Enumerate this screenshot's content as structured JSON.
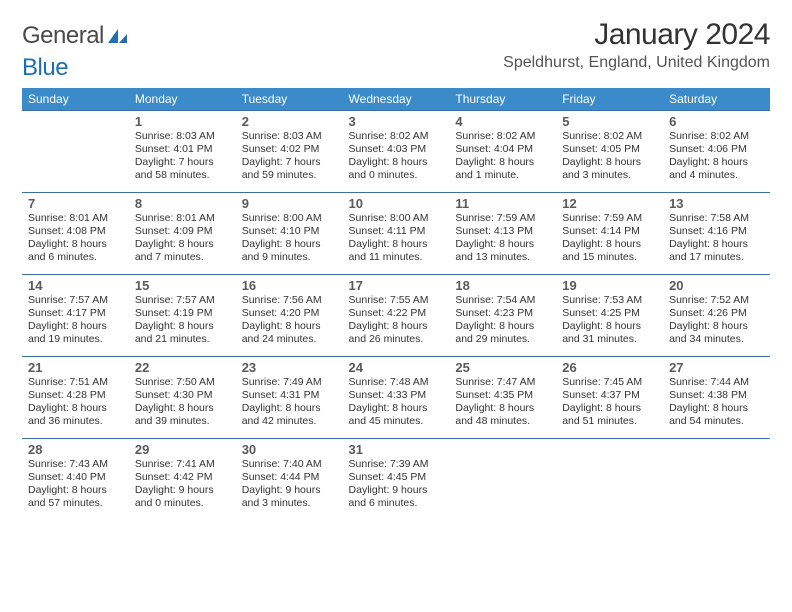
{
  "logo": {
    "word1": "General",
    "word2": "Blue"
  },
  "title": "January 2024",
  "location": "Speldhurst, England, United Kingdom",
  "colors": {
    "header_bg": "#3b8bca",
    "header_fg": "#ffffff",
    "rule": "#3b6fa0",
    "logo_gray": "#4a4a4a",
    "logo_blue": "#1f6fb2"
  },
  "day_names": [
    "Sunday",
    "Monday",
    "Tuesday",
    "Wednesday",
    "Thursday",
    "Friday",
    "Saturday"
  ],
  "start_offset": 1,
  "days_in_month": 31,
  "days": [
    {
      "n": 1,
      "sunrise": "8:03 AM",
      "sunset": "4:01 PM",
      "dl": "7 hours and 58 minutes."
    },
    {
      "n": 2,
      "sunrise": "8:03 AM",
      "sunset": "4:02 PM",
      "dl": "7 hours and 59 minutes."
    },
    {
      "n": 3,
      "sunrise": "8:02 AM",
      "sunset": "4:03 PM",
      "dl": "8 hours and 0 minutes."
    },
    {
      "n": 4,
      "sunrise": "8:02 AM",
      "sunset": "4:04 PM",
      "dl": "8 hours and 1 minute."
    },
    {
      "n": 5,
      "sunrise": "8:02 AM",
      "sunset": "4:05 PM",
      "dl": "8 hours and 3 minutes."
    },
    {
      "n": 6,
      "sunrise": "8:02 AM",
      "sunset": "4:06 PM",
      "dl": "8 hours and 4 minutes."
    },
    {
      "n": 7,
      "sunrise": "8:01 AM",
      "sunset": "4:08 PM",
      "dl": "8 hours and 6 minutes."
    },
    {
      "n": 8,
      "sunrise": "8:01 AM",
      "sunset": "4:09 PM",
      "dl": "8 hours and 7 minutes."
    },
    {
      "n": 9,
      "sunrise": "8:00 AM",
      "sunset": "4:10 PM",
      "dl": "8 hours and 9 minutes."
    },
    {
      "n": 10,
      "sunrise": "8:00 AM",
      "sunset": "4:11 PM",
      "dl": "8 hours and 11 minutes."
    },
    {
      "n": 11,
      "sunrise": "7:59 AM",
      "sunset": "4:13 PM",
      "dl": "8 hours and 13 minutes."
    },
    {
      "n": 12,
      "sunrise": "7:59 AM",
      "sunset": "4:14 PM",
      "dl": "8 hours and 15 minutes."
    },
    {
      "n": 13,
      "sunrise": "7:58 AM",
      "sunset": "4:16 PM",
      "dl": "8 hours and 17 minutes."
    },
    {
      "n": 14,
      "sunrise": "7:57 AM",
      "sunset": "4:17 PM",
      "dl": "8 hours and 19 minutes."
    },
    {
      "n": 15,
      "sunrise": "7:57 AM",
      "sunset": "4:19 PM",
      "dl": "8 hours and 21 minutes."
    },
    {
      "n": 16,
      "sunrise": "7:56 AM",
      "sunset": "4:20 PM",
      "dl": "8 hours and 24 minutes."
    },
    {
      "n": 17,
      "sunrise": "7:55 AM",
      "sunset": "4:22 PM",
      "dl": "8 hours and 26 minutes."
    },
    {
      "n": 18,
      "sunrise": "7:54 AM",
      "sunset": "4:23 PM",
      "dl": "8 hours and 29 minutes."
    },
    {
      "n": 19,
      "sunrise": "7:53 AM",
      "sunset": "4:25 PM",
      "dl": "8 hours and 31 minutes."
    },
    {
      "n": 20,
      "sunrise": "7:52 AM",
      "sunset": "4:26 PM",
      "dl": "8 hours and 34 minutes."
    },
    {
      "n": 21,
      "sunrise": "7:51 AM",
      "sunset": "4:28 PM",
      "dl": "8 hours and 36 minutes."
    },
    {
      "n": 22,
      "sunrise": "7:50 AM",
      "sunset": "4:30 PM",
      "dl": "8 hours and 39 minutes."
    },
    {
      "n": 23,
      "sunrise": "7:49 AM",
      "sunset": "4:31 PM",
      "dl": "8 hours and 42 minutes."
    },
    {
      "n": 24,
      "sunrise": "7:48 AM",
      "sunset": "4:33 PM",
      "dl": "8 hours and 45 minutes."
    },
    {
      "n": 25,
      "sunrise": "7:47 AM",
      "sunset": "4:35 PM",
      "dl": "8 hours and 48 minutes."
    },
    {
      "n": 26,
      "sunrise": "7:45 AM",
      "sunset": "4:37 PM",
      "dl": "8 hours and 51 minutes."
    },
    {
      "n": 27,
      "sunrise": "7:44 AM",
      "sunset": "4:38 PM",
      "dl": "8 hours and 54 minutes."
    },
    {
      "n": 28,
      "sunrise": "7:43 AM",
      "sunset": "4:40 PM",
      "dl": "8 hours and 57 minutes."
    },
    {
      "n": 29,
      "sunrise": "7:41 AM",
      "sunset": "4:42 PM",
      "dl": "9 hours and 0 minutes."
    },
    {
      "n": 30,
      "sunrise": "7:40 AM",
      "sunset": "4:44 PM",
      "dl": "9 hours and 3 minutes."
    },
    {
      "n": 31,
      "sunrise": "7:39 AM",
      "sunset": "4:45 PM",
      "dl": "9 hours and 6 minutes."
    }
  ],
  "labels": {
    "sunrise": "Sunrise:",
    "sunset": "Sunset:",
    "daylight": "Daylight:"
  }
}
